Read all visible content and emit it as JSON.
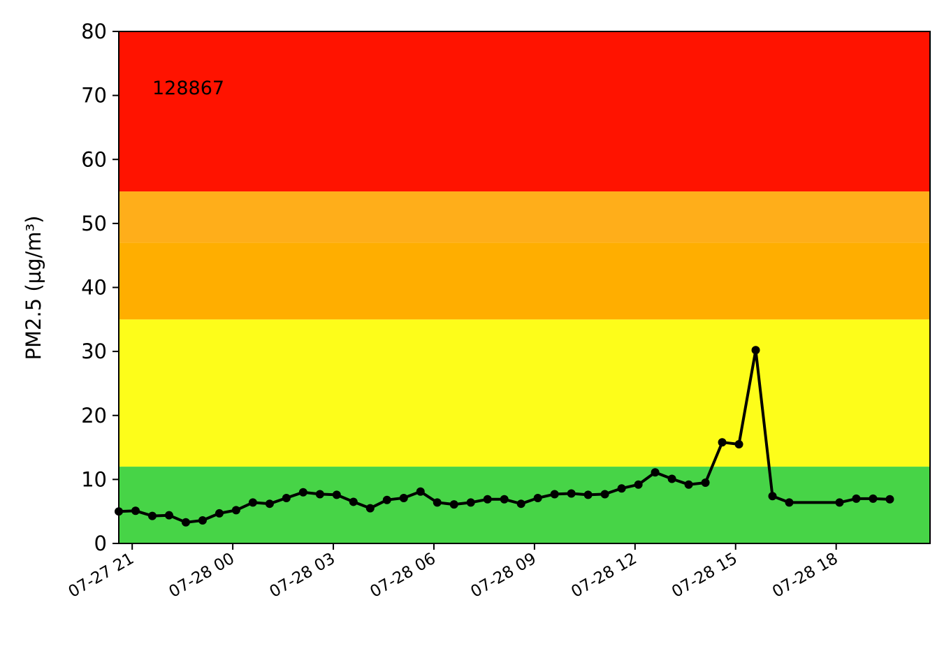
{
  "chart_data": {
    "type": "line",
    "title": "",
    "annotation": "128867",
    "xlabel": "",
    "ylabel": "PM2.5 (µg/m³)",
    "ylim": [
      0,
      80
    ],
    "yticks": [
      0,
      10,
      20,
      30,
      40,
      50,
      60,
      70,
      80
    ],
    "xlim": [
      "2024-07-27T20:36",
      "2024-07-28T20:48"
    ],
    "xticks": [
      {
        "t": "2024-07-27T21:00",
        "label": "07-27 21"
      },
      {
        "t": "2024-07-28T00:00",
        "label": "07-28 00"
      },
      {
        "t": "2024-07-28T03:00",
        "label": "07-28 03"
      },
      {
        "t": "2024-07-28T06:00",
        "label": "07-28 06"
      },
      {
        "t": "2024-07-28T09:00",
        "label": "07-28 09"
      },
      {
        "t": "2024-07-28T12:00",
        "label": "07-28 12"
      },
      {
        "t": "2024-07-28T15:00",
        "label": "07-28 15"
      },
      {
        "t": "2024-07-28T18:00",
        "label": "07-28 18"
      }
    ],
    "bands": [
      {
        "from": 0,
        "to": 12,
        "color": "#47d447"
      },
      {
        "from": 12,
        "to": 35,
        "color": "#fdfd1a"
      },
      {
        "from": 35,
        "to": 47,
        "color": "#ffae00"
      },
      {
        "from": 47,
        "to": 55,
        "color": "#ffae1a"
      },
      {
        "from": 55,
        "to": 80,
        "color": "#ff1300"
      }
    ],
    "line_color": "#000000",
    "grid": false,
    "series": [
      {
        "x": [
          "2024-07-27T20:36",
          "2024-07-27T21:06",
          "2024-07-27T21:36",
          "2024-07-27T22:06",
          "2024-07-27T22:36",
          "2024-07-27T23:06",
          "2024-07-27T23:36",
          "2024-07-28T00:06",
          "2024-07-28T00:36",
          "2024-07-28T01:06",
          "2024-07-28T01:36",
          "2024-07-28T02:06",
          "2024-07-28T02:36",
          "2024-07-28T03:06",
          "2024-07-28T03:36",
          "2024-07-28T04:06",
          "2024-07-28T04:36",
          "2024-07-28T05:06",
          "2024-07-28T05:36",
          "2024-07-28T06:06",
          "2024-07-28T06:36",
          "2024-07-28T07:06",
          "2024-07-28T07:36",
          "2024-07-28T08:06",
          "2024-07-28T08:36",
          "2024-07-28T09:06",
          "2024-07-28T09:36",
          "2024-07-28T10:06",
          "2024-07-28T10:36",
          "2024-07-28T11:06",
          "2024-07-28T11:36",
          "2024-07-28T12:06",
          "2024-07-28T12:36",
          "2024-07-28T13:06",
          "2024-07-28T13:36",
          "2024-07-28T14:06",
          "2024-07-28T14:36",
          "2024-07-28T15:06",
          "2024-07-28T15:36",
          "2024-07-28T16:06",
          "2024-07-28T16:36",
          "2024-07-28T18:06",
          "2024-07-28T18:36",
          "2024-07-28T19:06",
          "2024-07-28T19:36"
        ],
        "y": [
          5.0,
          5.1,
          4.3,
          4.4,
          3.3,
          3.6,
          4.7,
          5.2,
          6.4,
          6.2,
          7.1,
          8.0,
          7.7,
          7.6,
          6.5,
          5.5,
          6.8,
          7.1,
          8.1,
          6.4,
          6.1,
          6.4,
          6.9,
          6.9,
          6.2,
          7.1,
          7.7,
          7.8,
          7.6,
          7.7,
          8.6,
          9.2,
          11.1,
          10.1,
          9.2,
          9.5,
          15.8,
          15.5,
          30.2,
          7.4,
          6.4,
          6.4,
          7.0,
          7.0,
          6.9
        ]
      }
    ]
  }
}
